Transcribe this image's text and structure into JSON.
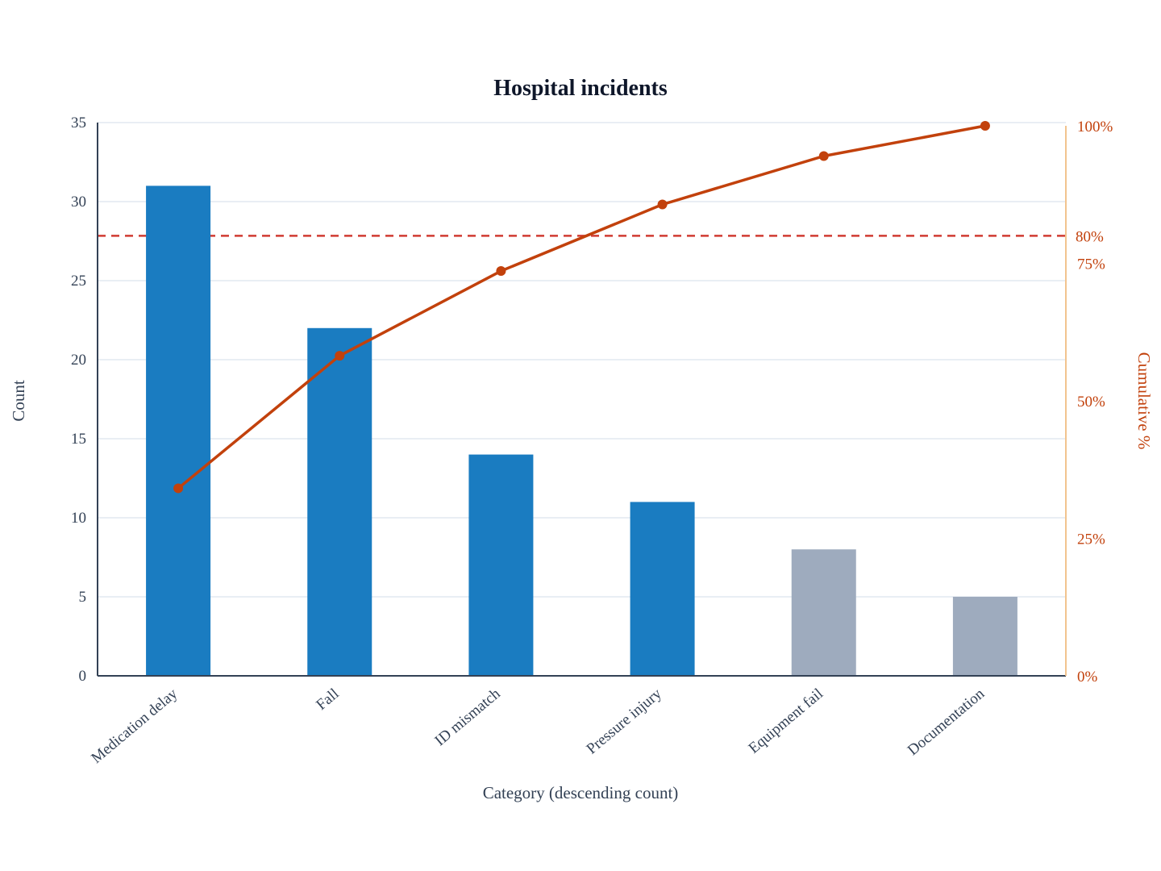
{
  "chart_data": {
    "type": "bar",
    "title": "Hospital incidents",
    "xlabel": "Category (descending count)",
    "ylabel": "Count",
    "y2label": "Cumulative %",
    "categories": [
      "Medication delay",
      "Fall",
      "ID mismatch",
      "Pressure injury",
      "Equipment fail",
      "Documentation"
    ],
    "series": [
      {
        "values": [
          31,
          22,
          14,
          11,
          8,
          5
        ],
        "kind": "bar"
      },
      {
        "values": [
          34.1,
          58.2,
          73.6,
          85.7,
          94.5,
          100
        ],
        "kind": "line",
        "axis": "right"
      }
    ],
    "ylim": [
      0,
      35
    ],
    "y2lim": [
      0,
      100
    ],
    "yticks": [
      0,
      5,
      10,
      15,
      20,
      25,
      30,
      35
    ],
    "y2ticks": [
      0,
      25,
      50,
      75,
      100
    ],
    "y2tick_labels": [
      "0%",
      "25%",
      "50%",
      "75%",
      "100%"
    ],
    "threshold": {
      "value": 80,
      "label": "80%"
    },
    "grid": true,
    "colors": {
      "bar_vital": "#1a7cc1",
      "bar_minor": "#9eabbe",
      "line": "#c2410c",
      "threshold": "#d03b32",
      "grid": "#e2e8f0",
      "axis": "#334155",
      "right_axis": "#f2c48f"
    }
  }
}
